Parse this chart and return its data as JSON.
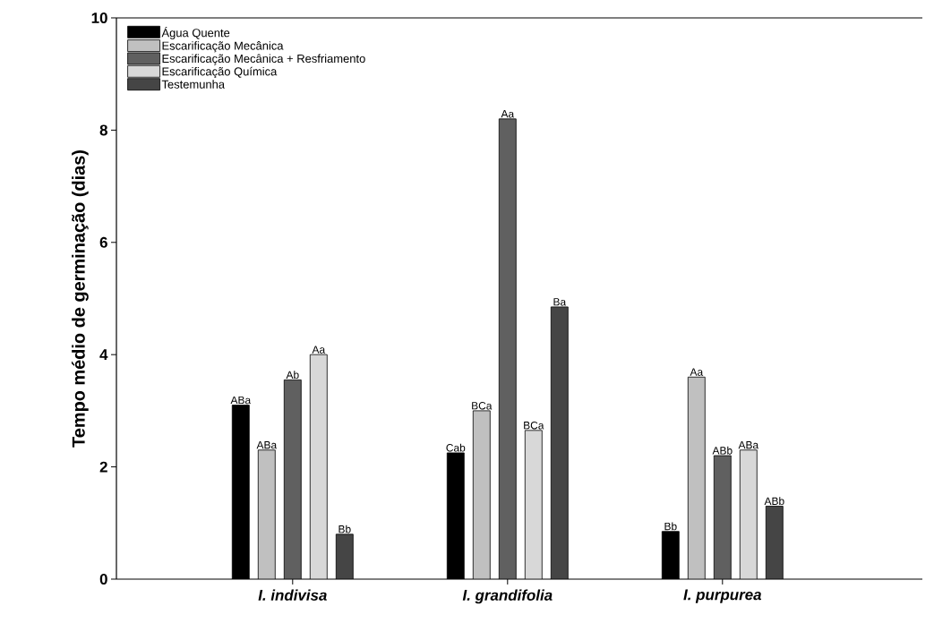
{
  "chart_data": {
    "type": "bar",
    "ylabel": "Tempo médio de germinação (dias)",
    "categories": [
      "I. indivisa",
      "I. grandifolia",
      "I. purpurea"
    ],
    "series": [
      {
        "name": "Água Quente",
        "color": "#000000",
        "values": [
          3.1,
          2.25,
          0.85
        ],
        "value_labels": [
          "ABa",
          "Cab",
          "Bb"
        ]
      },
      {
        "name": "Escarificação Mecânica",
        "color": "#c0c0c0",
        "values": [
          2.3,
          3.0,
          3.6
        ],
        "value_labels": [
          "ABa",
          "BCa",
          "Aa"
        ]
      },
      {
        "name": "Escarificação Mecânica + Resfriamento",
        "color": "#606060",
        "values": [
          3.55,
          8.2,
          2.2
        ],
        "value_labels": [
          "Ab",
          "Aa",
          "ABb"
        ]
      },
      {
        "name": "Escarificação Química",
        "color": "#d8d8d8",
        "values": [
          4.0,
          2.65,
          2.3
        ],
        "value_labels": [
          "Aa",
          "BCa",
          "ABa"
        ]
      },
      {
        "name": "Testemunha",
        "color": "#454545",
        "values": [
          0.8,
          4.85,
          1.3
        ],
        "value_labels": [
          "Bb",
          "Ba",
          "ABb"
        ]
      }
    ],
    "ylim": [
      0,
      10
    ],
    "yticks": [
      0,
      2,
      4,
      6,
      8,
      10
    ],
    "legend": "top left"
  }
}
